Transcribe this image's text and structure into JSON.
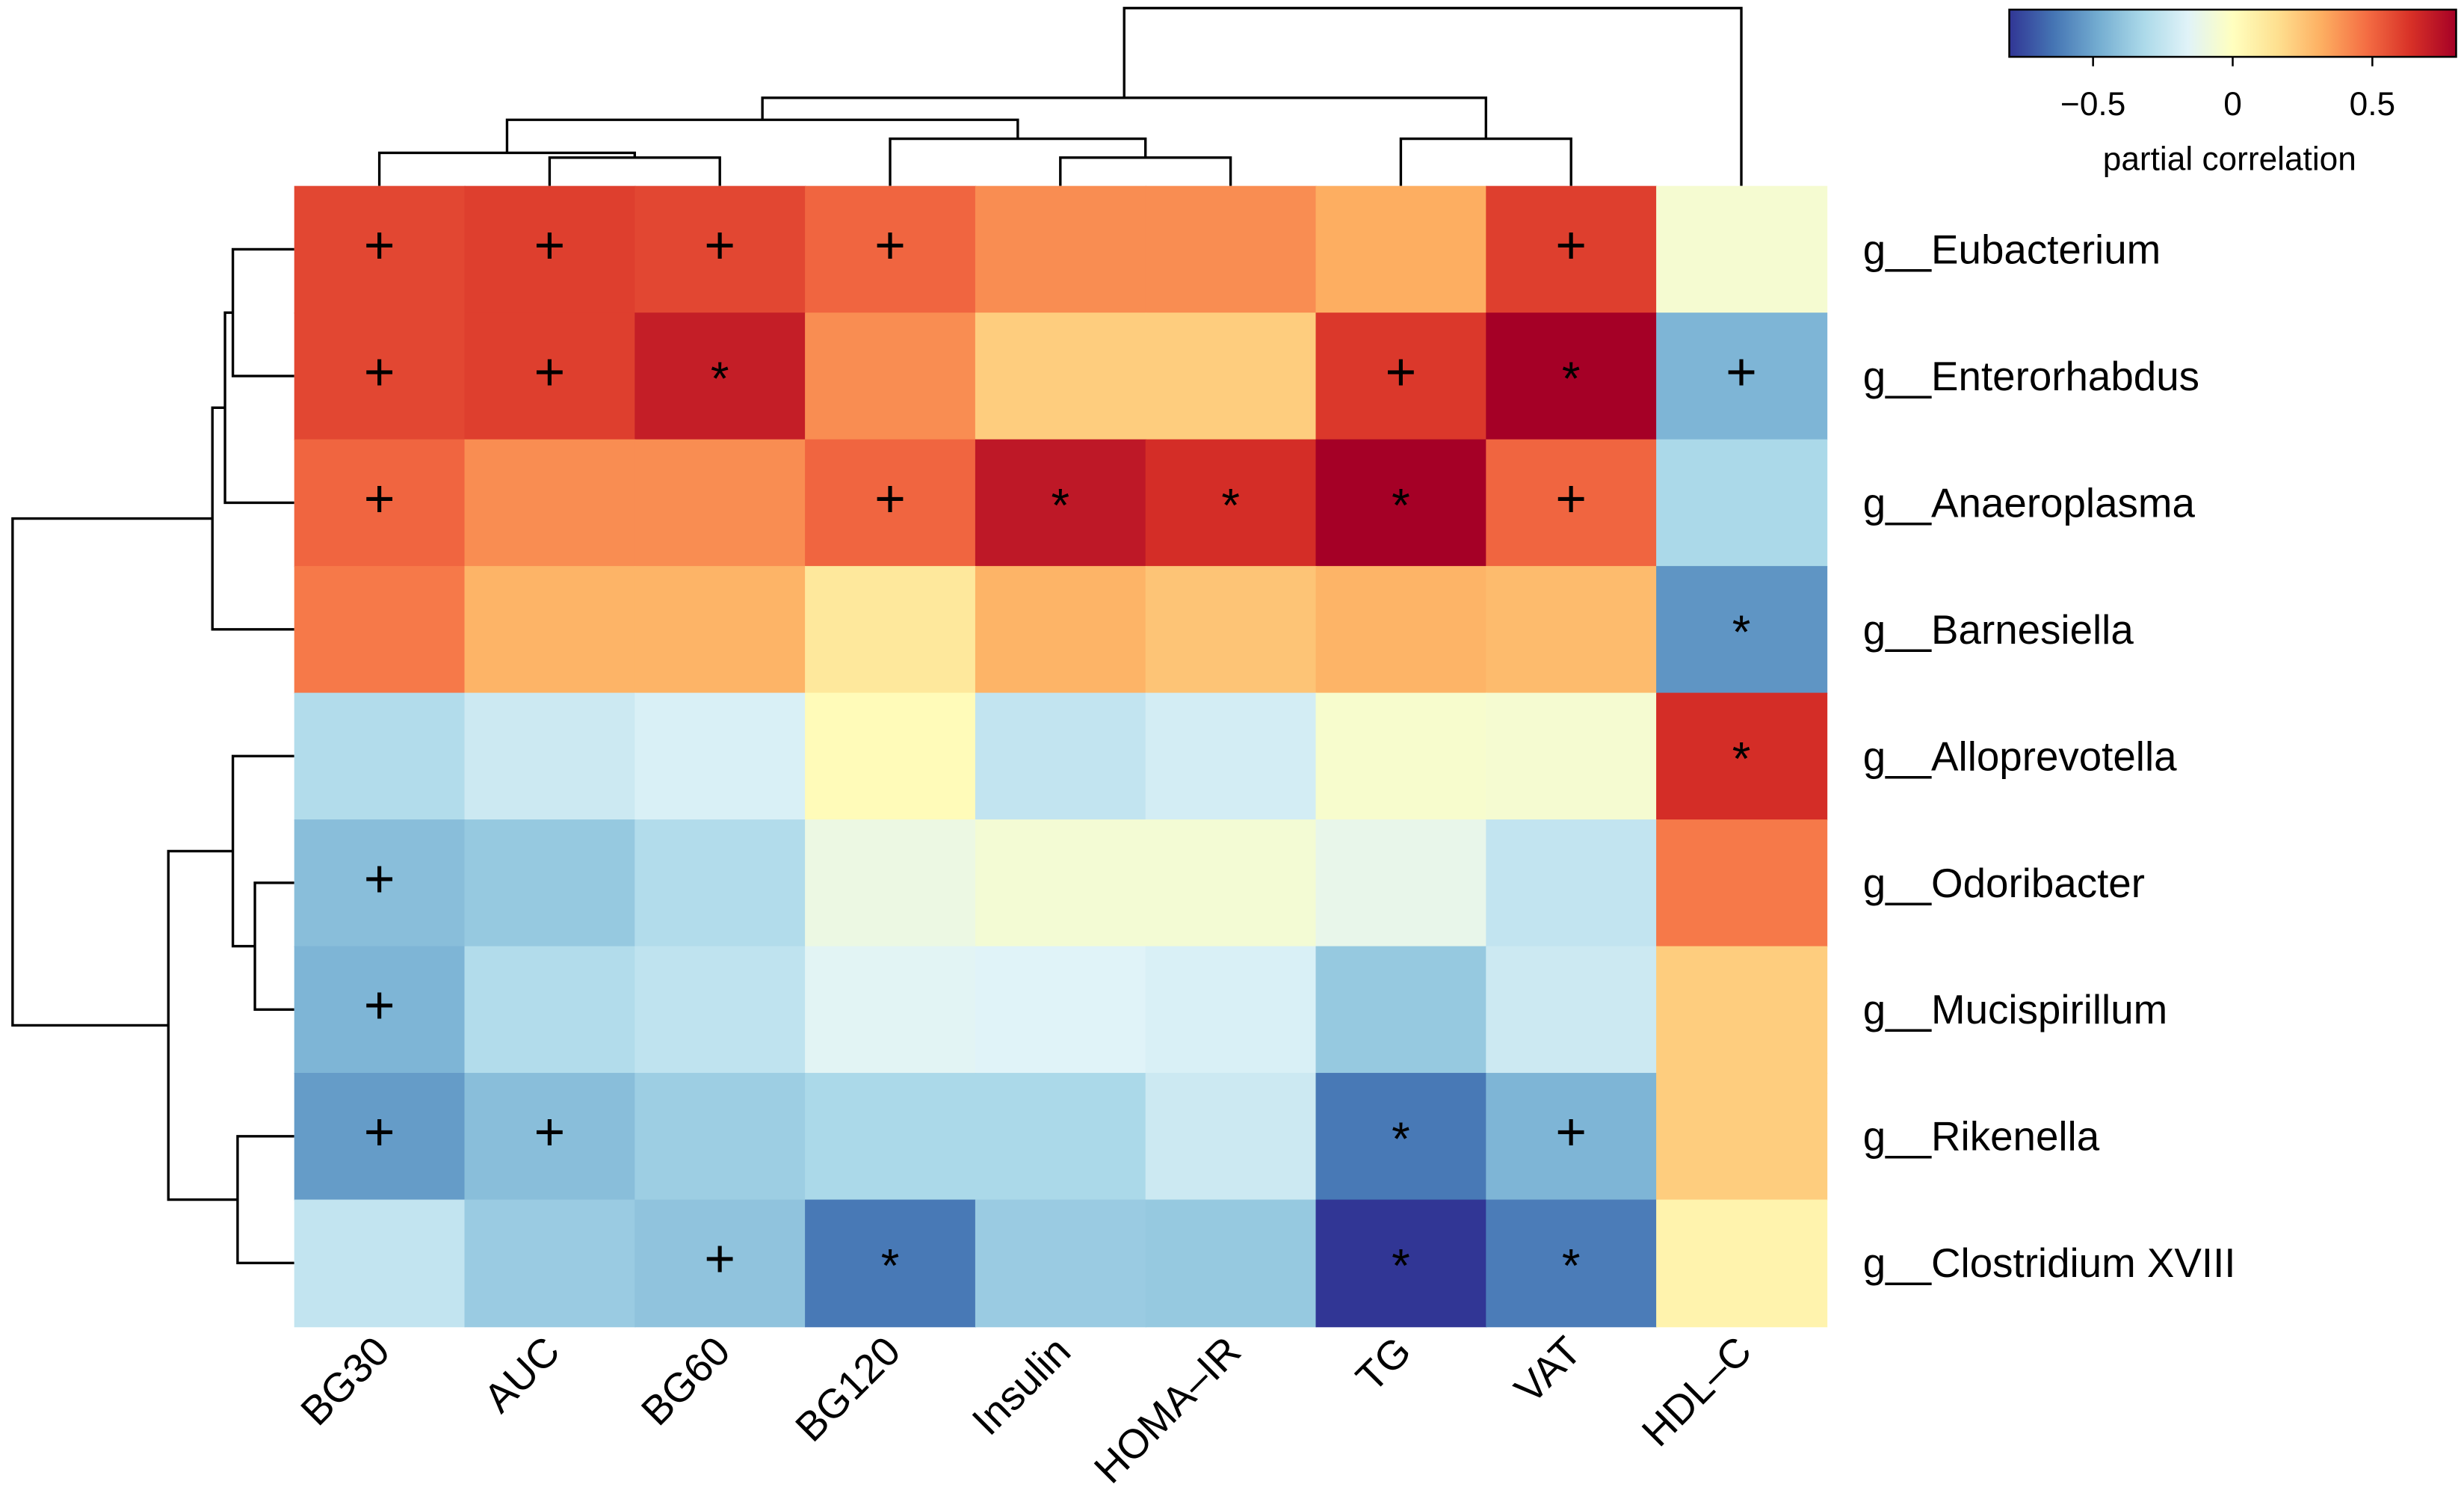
{
  "chart_data": {
    "type": "heatmap",
    "rows": [
      "g__Eubacterium",
      "g__Enterorhabdus",
      "g__Anaeroplasma",
      "g__Barnesiella",
      "g__Alloprevotella",
      "g__Odoribacter",
      "g__Mucispirillum",
      "g__Rikenella",
      "g__Clostridium XVIII"
    ],
    "columns": [
      "BG30",
      "AUC",
      "BG60",
      "BG120",
      "Insulin",
      "HOMA–IR",
      "TG",
      "VAT",
      "HDL–C"
    ],
    "values": [
      [
        0.58,
        0.6,
        0.58,
        0.5,
        0.4,
        0.4,
        0.32,
        0.6,
        -0.05
      ],
      [
        0.58,
        0.6,
        0.7,
        0.4,
        0.22,
        0.22,
        0.62,
        0.9,
        -0.45
      ],
      [
        0.5,
        0.4,
        0.4,
        0.5,
        0.72,
        0.65,
        0.8,
        0.5,
        -0.32
      ],
      [
        0.45,
        0.3,
        0.3,
        0.12,
        0.3,
        0.25,
        0.3,
        0.28,
        -0.55
      ],
      [
        -0.3,
        -0.22,
        -0.18,
        0.02,
        -0.25,
        -0.2,
        -0.04,
        -0.05,
        0.65
      ],
      [
        -0.42,
        -0.38,
        -0.3,
        -0.1,
        -0.06,
        -0.06,
        -0.12,
        -0.25,
        0.45
      ],
      [
        -0.45,
        -0.3,
        -0.26,
        -0.15,
        -0.16,
        -0.18,
        -0.38,
        -0.22,
        0.22
      ],
      [
        -0.53,
        -0.42,
        -0.36,
        -0.32,
        -0.32,
        -0.22,
        -0.63,
        -0.45,
        0.22
      ],
      [
        -0.25,
        -0.37,
        -0.4,
        -0.63,
        -0.37,
        -0.38,
        -0.82,
        -0.62,
        0.06
      ]
    ],
    "marks": [
      [
        "+",
        "+",
        "+",
        "+",
        "",
        "",
        "",
        "+",
        ""
      ],
      [
        "+",
        "+",
        "*",
        "",
        "",
        "",
        "+",
        "*",
        "+"
      ],
      [
        "+",
        "",
        "",
        "+",
        "*",
        "*",
        "*",
        "+",
        ""
      ],
      [
        "",
        "",
        "",
        "",
        "",
        "",
        "",
        "",
        "*"
      ],
      [
        "",
        "",
        "",
        "",
        "",
        "",
        "",
        "",
        "*"
      ],
      [
        "+",
        "",
        "",
        "",
        "",
        "",
        "",
        "",
        ""
      ],
      [
        "+",
        "",
        "",
        "",
        "",
        "",
        "",
        "",
        ""
      ],
      [
        "+",
        "+",
        "",
        "",
        "",
        "",
        "*",
        "+",
        ""
      ],
      [
        "",
        "",
        "+",
        "*",
        "",
        "",
        "*",
        "*",
        ""
      ]
    ],
    "column_dendrogram_order": [
      "BG30",
      "AUC",
      "BG60",
      "BG120",
      "Insulin",
      "HOMA–IR",
      "TG",
      "VAT",
      "HDL–C"
    ],
    "row_dendrogram_order": [
      "g__Eubacterium",
      "g__Enterorhabdus",
      "g__Anaeroplasma",
      "g__Barnesiella",
      "g__Alloprevotella",
      "g__Odoribacter",
      "g__Mucispirillum",
      "g__Rikenella",
      "g__Clostridium XVIII"
    ],
    "colorscale": {
      "range": [
        -0.8,
        0.8
      ],
      "colors": [
        "#313695",
        "#4575b4",
        "#74add1",
        "#abd9e9",
        "#e0f3f8",
        "#ffffbf",
        "#fee090",
        "#fdae61",
        "#f46d43",
        "#d73027",
        "#a50026"
      ],
      "ticks": [
        -0.5,
        0,
        0.5
      ],
      "tick_labels": [
        "−0.5",
        "0",
        "0.5"
      ],
      "title": "partial correlation"
    },
    "legend_position": "top-right"
  }
}
